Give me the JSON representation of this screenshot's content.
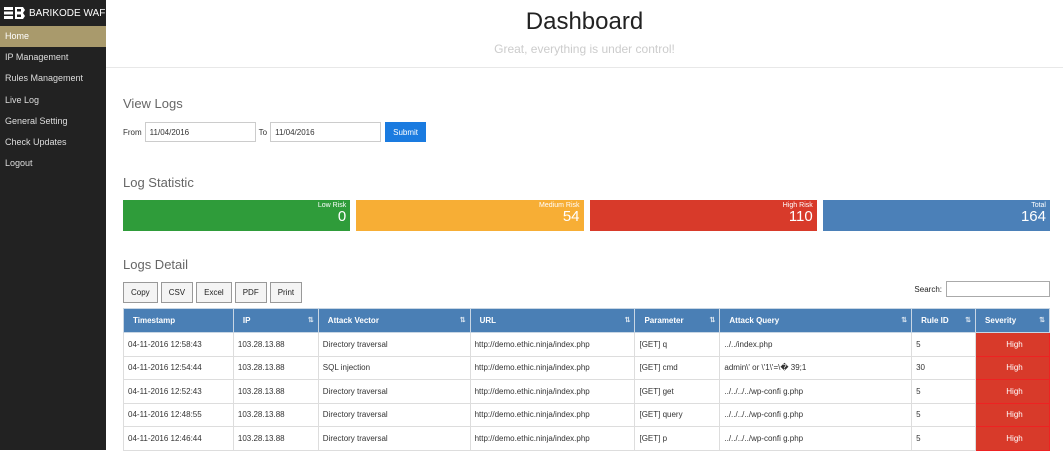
{
  "sidebar": {
    "brand": "BARIKODE WAF",
    "items": [
      {
        "label": "Home",
        "active": true
      },
      {
        "label": "IP Management"
      },
      {
        "label": "Rules Management"
      },
      {
        "label": "Live Log"
      },
      {
        "label": "General Setting"
      },
      {
        "label": "Check Updates"
      },
      {
        "label": "Logout"
      }
    ]
  },
  "header": {
    "title": "Dashboard",
    "subtitle": "Great, everything is under control!"
  },
  "view_logs": {
    "title": "View Logs",
    "from_label": "From",
    "from_value": "11/04/2016",
    "to_label": "To",
    "to_value": "11/04/2016",
    "submit_label": "Submit"
  },
  "log_statistic": {
    "title": "Log Statistic",
    "cards": [
      {
        "label": "Low Risk",
        "value": "0",
        "color": "#2f9c3a"
      },
      {
        "label": "Medium Risk",
        "value": "54",
        "color": "#f7ae35"
      },
      {
        "label": "High Risk",
        "value": "110",
        "color": "#d83a2a"
      },
      {
        "label": "Total",
        "value": "164",
        "color": "#4b80b8"
      }
    ]
  },
  "logs_detail": {
    "title": "Logs Detail",
    "buttons": [
      "Copy",
      "CSV",
      "Excel",
      "PDF",
      "Print"
    ],
    "search_label": "Search:",
    "columns": [
      "Timestamp",
      "IP",
      "Attack Vector",
      "URL",
      "Parameter",
      "Attack Query",
      "Rule ID",
      "Severity"
    ],
    "rows": [
      [
        "04-11-2016 12:58:43",
        "103.28.13.88",
        "Directory traversal",
        "http://demo.ethic.ninja/index.php",
        "[GET] q",
        "../../index.php",
        "5",
        "High"
      ],
      [
        "04-11-2016 12:54:44",
        "103.28.13.88",
        "SQL injection",
        "http://demo.ethic.ninja/index.php",
        "[GET] cmd",
        "admin\\' or \\'1\\'=\\� 39;1",
        "30",
        "High"
      ],
      [
        "04-11-2016 12:52:43",
        "103.28.13.88",
        "Directory traversal",
        "http://demo.ethic.ninja/index.php",
        "[GET] get",
        "../../../../wp-confi g.php",
        "5",
        "High"
      ],
      [
        "04-11-2016 12:48:55",
        "103.28.13.88",
        "Directory traversal",
        "http://demo.ethic.ninja/index.php",
        "[GET] query",
        "../../../../wp-confi g.php",
        "5",
        "High"
      ],
      [
        "04-11-2016 12:46:44",
        "103.28.13.88",
        "Directory traversal",
        "http://demo.ethic.ninja/index.php",
        "[GET] p",
        "../../../../wp-confi g.php",
        "5",
        "High"
      ]
    ]
  }
}
